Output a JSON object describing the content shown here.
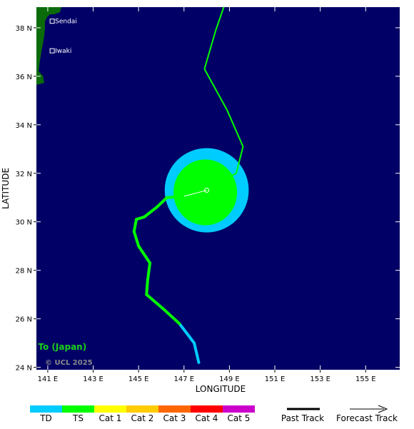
{
  "map": {
    "xlabel": "LONGITUDE",
    "ylabel": "LATITUDE",
    "lon_ticks": [
      {
        "value": 141,
        "label": "141 E"
      },
      {
        "value": 143,
        "label": "143 E"
      },
      {
        "value": 145,
        "label": "145 E"
      },
      {
        "value": 147,
        "label": "147 E"
      },
      {
        "value": 149,
        "label": "149 E"
      },
      {
        "value": 151,
        "label": "151 E"
      },
      {
        "value": 153,
        "label": "153 E"
      },
      {
        "value": 155,
        "label": "155 E"
      }
    ],
    "lat_ticks": [
      {
        "value": 24,
        "label": "24 N"
      },
      {
        "value": 26,
        "label": "26 N"
      },
      {
        "value": 28,
        "label": "28 N"
      },
      {
        "value": 30,
        "label": "30 N"
      },
      {
        "value": 32,
        "label": "32 N"
      },
      {
        "value": 34,
        "label": "34 N"
      },
      {
        "value": 36,
        "label": "36 N"
      },
      {
        "value": 38,
        "label": "38 N"
      }
    ],
    "lon_range": [
      140.5,
      156.5
    ],
    "lat_range": [
      23.9,
      38.85
    ],
    "ocean_color": "#000066",
    "land_color": "#0b6b0b",
    "cities": [
      {
        "name": "Sendai",
        "lon": 140.85,
        "lat": 38.27
      },
      {
        "name": "Iwaki",
        "lon": 140.85,
        "lat": 37.05
      }
    ],
    "storm_name": "o To (Japan)",
    "credit": "© UCL 2025"
  },
  "track": {
    "past": [
      {
        "lon": 147.65,
        "lat": 24.2,
        "cat": "TD"
      },
      {
        "lon": 147.45,
        "lat": 25.0,
        "cat": "TD"
      },
      {
        "lon": 146.8,
        "lat": 25.8,
        "cat": "TD"
      },
      {
        "lon": 146.1,
        "lat": 26.4,
        "cat": "TS"
      },
      {
        "lon": 145.35,
        "lat": 27.0,
        "cat": "TS"
      },
      {
        "lon": 145.4,
        "lat": 27.6,
        "cat": "TS"
      },
      {
        "lon": 145.5,
        "lat": 28.3,
        "cat": "TS"
      },
      {
        "lon": 145.0,
        "lat": 29.0,
        "cat": "TS"
      },
      {
        "lon": 144.8,
        "lat": 29.6,
        "cat": "TS"
      },
      {
        "lon": 144.9,
        "lat": 30.1,
        "cat": "TS"
      },
      {
        "lon": 145.25,
        "lat": 30.2,
        "cat": "TS"
      },
      {
        "lon": 145.8,
        "lat": 30.6,
        "cat": "TS"
      },
      {
        "lon": 146.25,
        "lat": 31.0,
        "cat": "TS"
      },
      {
        "lon": 147.0,
        "lat": 31.05,
        "cat": "TS"
      },
      {
        "lon": 148.0,
        "lat": 31.3,
        "cat": "TS"
      }
    ],
    "forecast": [
      {
        "lon": 148.0,
        "lat": 31.3,
        "cat": "TS"
      },
      {
        "lon": 149.3,
        "lat": 32.0,
        "cat": "TS"
      },
      {
        "lon": 149.6,
        "lat": 33.1,
        "cat": "TS"
      },
      {
        "lon": 148.9,
        "lat": 34.6,
        "cat": "TS"
      },
      {
        "lon": 147.9,
        "lat": 36.3,
        "cat": "TS"
      },
      {
        "lon": 148.4,
        "lat": 37.9,
        "cat": "TS"
      },
      {
        "lon": 148.75,
        "lat": 38.85,
        "cat": "TS"
      }
    ],
    "current_position": {
      "lon": 148.0,
      "lat": 31.3
    },
    "wind_fields": {
      "td_radius_deg": 1.85,
      "ts_radius_deg": 1.4
    }
  },
  "legend": {
    "categories": [
      {
        "label": "TD",
        "color": "#00ccff"
      },
      {
        "label": "TS",
        "color": "#00ff00"
      },
      {
        "label": "Cat 1",
        "color": "#ffff00"
      },
      {
        "label": "Cat 2",
        "color": "#ffcc00"
      },
      {
        "label": "Cat 3",
        "color": "#ff6600"
      },
      {
        "label": "Cat 4",
        "color": "#ff0000"
      },
      {
        "label": "Cat 5",
        "color": "#cc00cc"
      }
    ],
    "past_track_label": "Past Track",
    "forecast_track_label": "Forecast Track"
  }
}
